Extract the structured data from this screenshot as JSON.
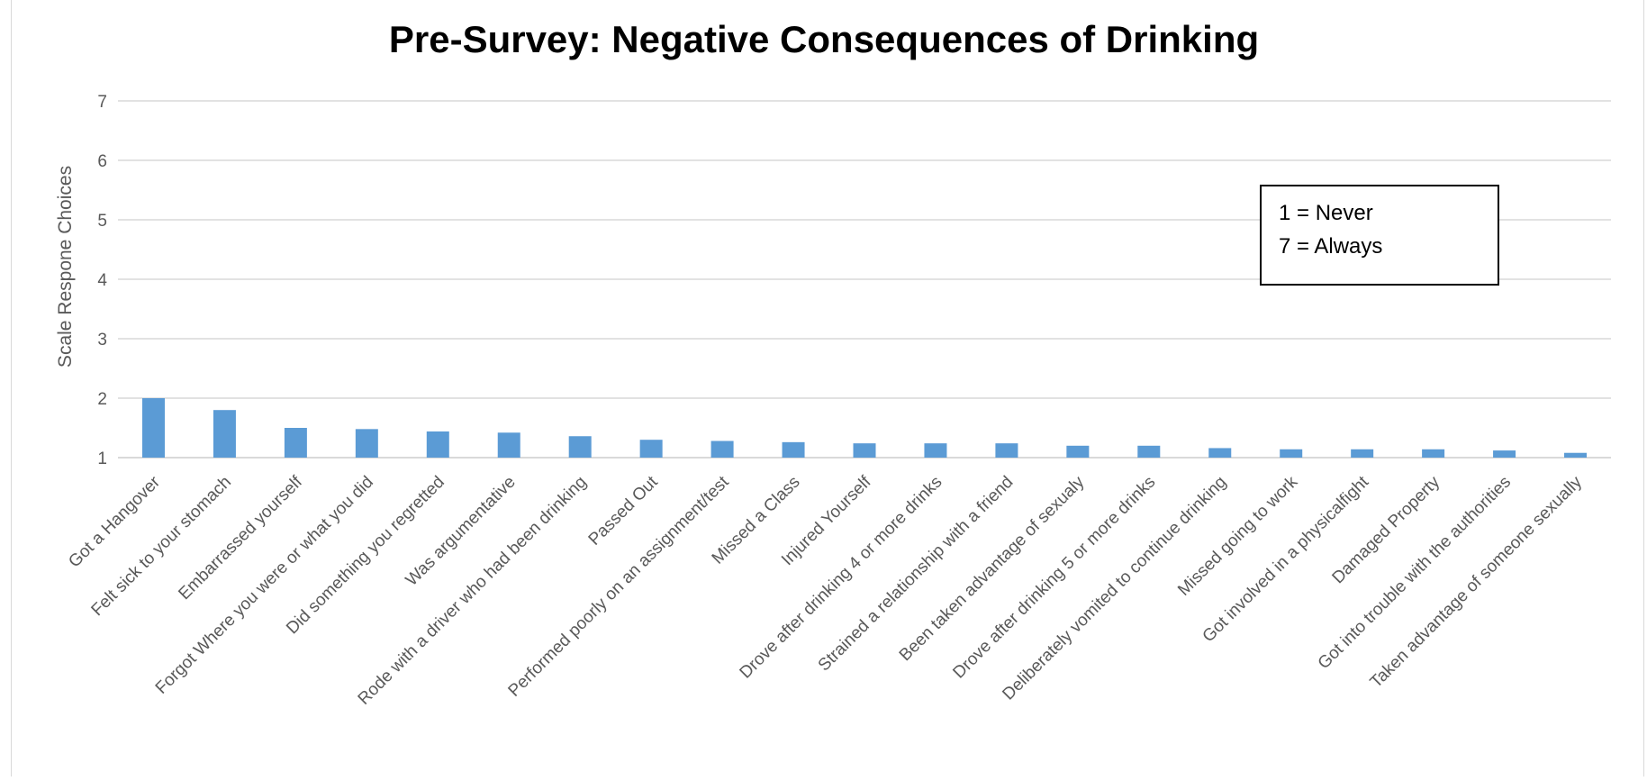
{
  "chart_data": {
    "type": "bar",
    "title": "Pre-Survey: Negative Consequences of Drinking",
    "xlabel": "",
    "ylabel": "Scale Respone Choices",
    "ylim": [
      1,
      7
    ],
    "yticks": [
      1,
      2,
      3,
      4,
      5,
      6,
      7
    ],
    "grid": true,
    "legend": false,
    "bar_color": "#5b9bd5",
    "categories": [
      "Got a Hangover",
      "Felt sick to your stomach",
      "Embarrassed yourself",
      "Forgot Where you were or what you did",
      "Did something you regretted",
      "Was argumentative",
      "Rode with a driver who had been drinking",
      "Passed Out",
      "Performed poorly on an assignment/test",
      "Missed a Class",
      "Injured Yourself",
      "Drove after drinking 4 or more drinks",
      "Strained a relationship with a friend",
      "Been taken advantage of sexualy",
      "Drove after drinking 5 or more drinks",
      "Deliberately vomited to continue drinking",
      "Missed going to work",
      "Got involved in a physicalfight",
      "Damaged Property",
      "Got into trouble with the authorities",
      "Taken advantage of someone sexually"
    ],
    "values": [
      2.0,
      1.8,
      1.5,
      1.48,
      1.44,
      1.42,
      1.36,
      1.3,
      1.28,
      1.26,
      1.24,
      1.24,
      1.24,
      1.2,
      1.2,
      1.16,
      1.14,
      1.14,
      1.14,
      1.12,
      1.08
    ],
    "annotation": {
      "lines": [
        "1 = Never",
        "7 = Always"
      ]
    }
  }
}
